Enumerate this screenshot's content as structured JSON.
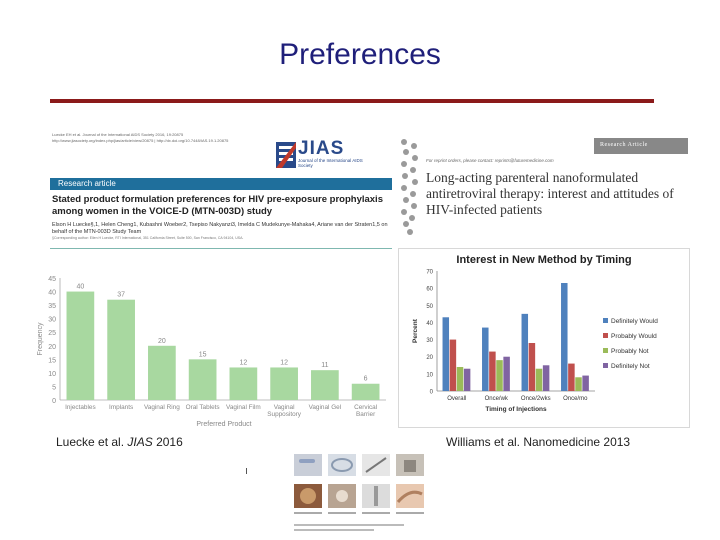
{
  "slide": {
    "title": "Preferences"
  },
  "left_paper": {
    "citation": "Luecke EH et al. Journal of the International AIDS Society 2016, 19:20875",
    "citation_url": "http://www.jiasociety.org/index.php/jias/article/view/20875 | http://dx.doi.org/10.7448/IAS.19.1.20875",
    "logo": "JIAS",
    "logo_sub": "Journal of the International AIDS Society",
    "section_label": "Research article",
    "title": "Stated product formulation preferences for HIV pre-exposure prophylaxis among women in the VOICE-D (MTN-003D) study",
    "authors": "Elson H Luecke§,1, Helen Cheng1, Kubashni Woeber2, Tsepiso Nakyanzi3, Imelda C Mudekunye-Mahaka4, Ariane van der Straten1,5 on behalf of the MTN-003D Study Team",
    "affiliations": "§Corresponding author: Ellen H Luecke, RTI International, 351 California Street, Suite 500, San Francisco, CA 94104, USA."
  },
  "right_paper": {
    "label": "Research Article",
    "reprint": "For reprint orders, please contact: reprints@futuremedicine.com",
    "title": "Long-acting parenteral nanoformulated antiretroviral therapy: interest and attitudes of HIV-infected patients"
  },
  "captions": {
    "left_prefix": "Luecke et al. ",
    "left_journal": "JIAS",
    "left_year": " 2016",
    "right": "Williams et al. Nanomedicine 2013"
  },
  "chart_data": [
    {
      "type": "bar",
      "title": "",
      "xlabel": "Preferred Product",
      "ylabel": "Frequency",
      "ylim": [
        0,
        45
      ],
      "yticks": [
        0,
        5,
        10,
        15,
        20,
        25,
        30,
        35,
        40,
        45
      ],
      "categories": [
        "Injectables",
        "Implants",
        "Vaginal Ring",
        "Oral Tablets",
        "Vaginal Film",
        "Vaginal Suppository",
        "Vaginal Gel",
        "Cervical Barrier"
      ],
      "values": [
        40,
        37,
        20,
        15,
        12,
        12,
        11,
        6
      ],
      "bar_color": "#a8d8a0",
      "grid": false
    },
    {
      "type": "bar",
      "title": "Interest in New Method by Timing",
      "xlabel": "Timing of Injections",
      "ylabel": "Percent",
      "ylim": [
        0,
        70
      ],
      "yticks": [
        0,
        10,
        20,
        30,
        40,
        50,
        60,
        70
      ],
      "categories": [
        "Overall",
        "Once/wk",
        "Once/2wks",
        "Once/mo"
      ],
      "series": [
        {
          "name": "Definitely Would",
          "color": "#4f81bd",
          "values": [
            43,
            37,
            45,
            63
          ]
        },
        {
          "name": "Probably Would",
          "color": "#c0504d",
          "values": [
            30,
            23,
            28,
            16
          ]
        },
        {
          "name": "Probably Not",
          "color": "#9bbb59",
          "values": [
            14,
            18,
            13,
            8
          ]
        },
        {
          "name": "Definitely Not",
          "color": "#8064a2",
          "values": [
            13,
            20,
            15,
            9
          ]
        }
      ],
      "legend": "right",
      "grid": false
    }
  ]
}
